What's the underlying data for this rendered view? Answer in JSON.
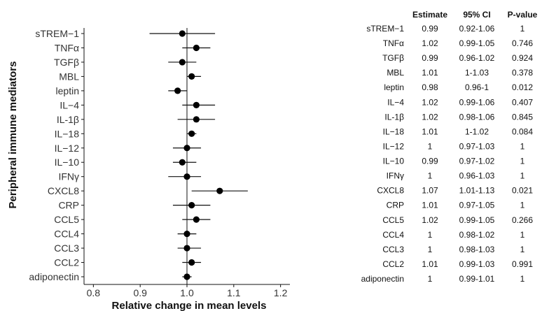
{
  "chart_data": {
    "type": "forest",
    "ylabel": "Peripheral immune mediators",
    "xlabel": "Relative change in mean levels",
    "xlim": [
      0.78,
      1.22
    ],
    "xticks": [
      0.8,
      0.9,
      1.0,
      1.1,
      1.2
    ],
    "xtick_labels": [
      "0.8",
      "0.9",
      "1.0",
      "1.1",
      "1.2"
    ],
    "reference_line": 1.0,
    "grid": false,
    "rows": [
      {
        "label": "sTREM−1",
        "estimate": 0.99,
        "ci_low": 0.92,
        "ci_high": 1.06,
        "ci_text": "0.92-1.06",
        "p": "1"
      },
      {
        "label": "TNFα",
        "estimate": 1.02,
        "ci_low": 0.99,
        "ci_high": 1.05,
        "ci_text": "0.99-1.05",
        "p": "0.746"
      },
      {
        "label": "TGFβ",
        "estimate": 0.99,
        "ci_low": 0.96,
        "ci_high": 1.02,
        "ci_text": "0.96-1.02",
        "p": "0.924"
      },
      {
        "label": "MBL",
        "estimate": 1.01,
        "ci_low": 1.0,
        "ci_high": 1.03,
        "ci_text": "1-1.03",
        "p": "0.378"
      },
      {
        "label": "leptin",
        "estimate": 0.98,
        "ci_low": 0.96,
        "ci_high": 1.0,
        "ci_text": "0.96-1",
        "p": "0.012"
      },
      {
        "label": "IL−4",
        "estimate": 1.02,
        "ci_low": 0.99,
        "ci_high": 1.06,
        "ci_text": "0.99-1.06",
        "p": "0.407"
      },
      {
        "label": "IL-1β",
        "estimate": 1.02,
        "ci_low": 0.98,
        "ci_high": 1.06,
        "ci_text": "0.98-1.06",
        "p": "0.845"
      },
      {
        "label": "IL−18",
        "estimate": 1.01,
        "ci_low": 1.0,
        "ci_high": 1.02,
        "ci_text": "1-1.02",
        "p": "0.084"
      },
      {
        "label": "IL−12",
        "estimate": 1.0,
        "ci_low": 0.97,
        "ci_high": 1.03,
        "ci_text": "0.97-1.03",
        "p": "1"
      },
      {
        "label": "IL−10",
        "estimate": 0.99,
        "ci_low": 0.97,
        "ci_high": 1.02,
        "ci_text": "0.97-1.02",
        "p": "1"
      },
      {
        "label": "IFNγ",
        "estimate": 1.0,
        "ci_low": 0.96,
        "ci_high": 1.03,
        "ci_text": "0.96-1.03",
        "p": "1"
      },
      {
        "label": "CXCL8",
        "estimate": 1.07,
        "ci_low": 1.01,
        "ci_high": 1.13,
        "ci_text": "1.01-1.13",
        "p": "0.021"
      },
      {
        "label": "CRP",
        "estimate": 1.01,
        "ci_low": 0.97,
        "ci_high": 1.05,
        "ci_text": "0.97-1.05",
        "p": "1"
      },
      {
        "label": "CCL5",
        "estimate": 1.02,
        "ci_low": 0.99,
        "ci_high": 1.05,
        "ci_text": "0.99-1.05",
        "p": "0.266"
      },
      {
        "label": "CCL4",
        "estimate": 1.0,
        "ci_low": 0.98,
        "ci_high": 1.02,
        "ci_text": "0.98-1.02",
        "p": "1"
      },
      {
        "label": "CCL3",
        "estimate": 1.0,
        "ci_low": 0.98,
        "ci_high": 1.03,
        "ci_text": "0.98-1.03",
        "p": "1"
      },
      {
        "label": "CCL2",
        "estimate": 1.01,
        "ci_low": 0.99,
        "ci_high": 1.03,
        "ci_text": "0.99-1.03",
        "p": "0.991"
      },
      {
        "label": "adiponectin",
        "estimate": 1.0,
        "ci_low": 0.99,
        "ci_high": 1.01,
        "ci_text": "0.99-1.01",
        "p": "1"
      }
    ]
  },
  "table": {
    "headers": [
      "Estimate",
      "95% CI",
      "P-value"
    ]
  }
}
